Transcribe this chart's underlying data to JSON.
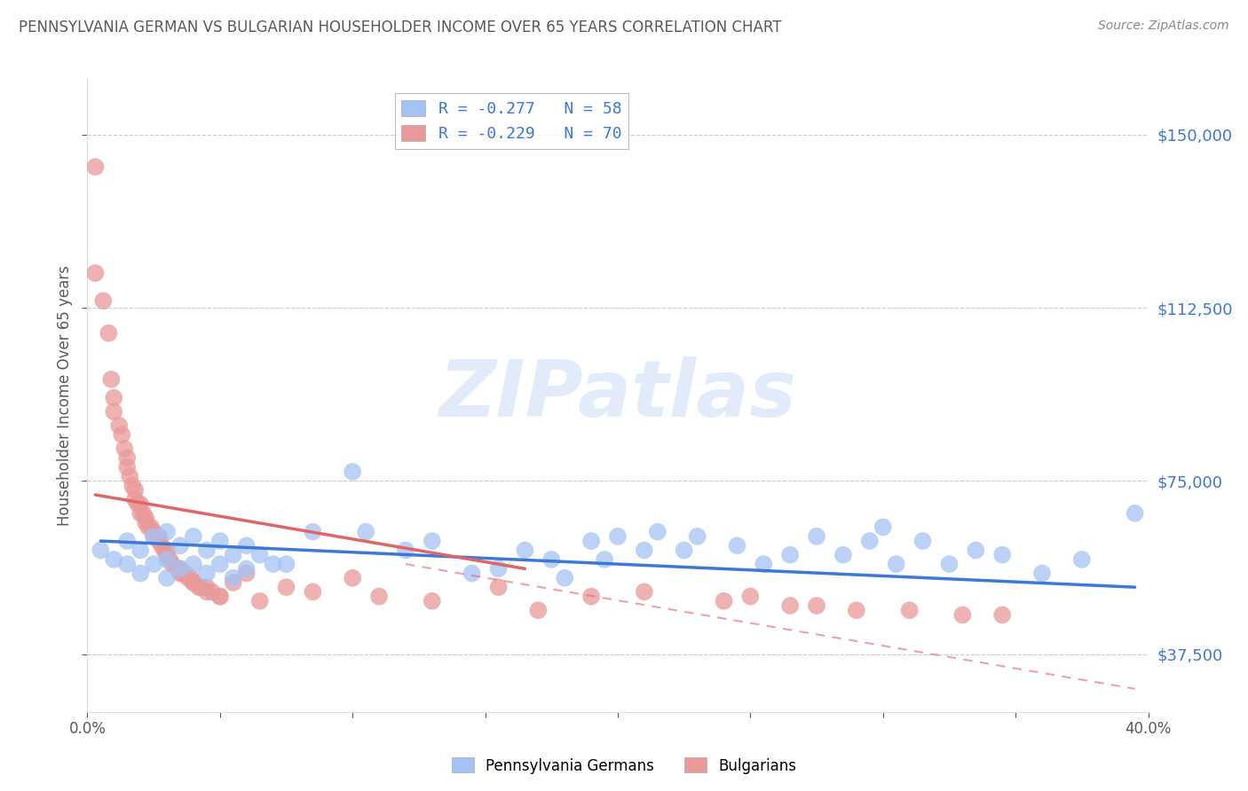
{
  "title": "PENNSYLVANIA GERMAN VS BULGARIAN HOUSEHOLDER INCOME OVER 65 YEARS CORRELATION CHART",
  "source": "Source: ZipAtlas.com",
  "ylabel": "Householder Income Over 65 years",
  "xlim": [
    0.0,
    0.4
  ],
  "ylim": [
    25000,
    162000
  ],
  "yticks": [
    37500,
    75000,
    112500,
    150000
  ],
  "ytick_labels": [
    "$37,500",
    "$75,000",
    "$112,500",
    "$150,000"
  ],
  "xticks": [
    0.0,
    0.05,
    0.1,
    0.15,
    0.2,
    0.25,
    0.3,
    0.35,
    0.4
  ],
  "xtick_labels": [
    "0.0%",
    "",
    "",
    "",
    "",
    "",
    "",
    "",
    "40.0%"
  ],
  "legend_entry1": "R = -0.277   N = 58",
  "legend_entry2": "R = -0.229   N = 70",
  "legend_color1": "#a4c2f4",
  "legend_color2": "#ea9999",
  "watermark": "ZIPatlas",
  "bg_color": "#ffffff",
  "grid_color": "#cccccc",
  "title_color": "#595959",
  "axis_color": "#595959",
  "blue_scatter_color": "#a4c2f4",
  "pink_scatter_color": "#ea9999",
  "blue_line_color": "#3c78d8",
  "pink_line_color": "#e06666",
  "blue_scatter_x": [
    0.005,
    0.01,
    0.015,
    0.015,
    0.02,
    0.02,
    0.025,
    0.025,
    0.03,
    0.03,
    0.03,
    0.035,
    0.035,
    0.04,
    0.04,
    0.045,
    0.045,
    0.05,
    0.05,
    0.055,
    0.055,
    0.06,
    0.06,
    0.065,
    0.07,
    0.075,
    0.085,
    0.1,
    0.105,
    0.12,
    0.13,
    0.145,
    0.155,
    0.165,
    0.175,
    0.18,
    0.19,
    0.195,
    0.2,
    0.21,
    0.215,
    0.225,
    0.23,
    0.245,
    0.255,
    0.265,
    0.275,
    0.285,
    0.295,
    0.3,
    0.305,
    0.315,
    0.325,
    0.335,
    0.345,
    0.36,
    0.375,
    0.395
  ],
  "blue_scatter_y": [
    60000,
    58000,
    62000,
    57000,
    60000,
    55000,
    63000,
    57000,
    64000,
    58000,
    54000,
    61000,
    56000,
    63000,
    57000,
    60000,
    55000,
    62000,
    57000,
    59000,
    54000,
    61000,
    56000,
    59000,
    57000,
    57000,
    64000,
    77000,
    64000,
    60000,
    62000,
    55000,
    56000,
    60000,
    58000,
    54000,
    62000,
    58000,
    63000,
    60000,
    64000,
    60000,
    63000,
    61000,
    57000,
    59000,
    63000,
    59000,
    62000,
    65000,
    57000,
    62000,
    57000,
    60000,
    59000,
    55000,
    58000,
    68000
  ],
  "pink_scatter_x": [
    0.003,
    0.003,
    0.006,
    0.008,
    0.009,
    0.01,
    0.01,
    0.012,
    0.013,
    0.014,
    0.015,
    0.015,
    0.016,
    0.017,
    0.018,
    0.018,
    0.019,
    0.02,
    0.02,
    0.021,
    0.022,
    0.022,
    0.023,
    0.024,
    0.025,
    0.025,
    0.027,
    0.027,
    0.028,
    0.029,
    0.03,
    0.03,
    0.031,
    0.032,
    0.034,
    0.035,
    0.035,
    0.036,
    0.037,
    0.038,
    0.039,
    0.04,
    0.04,
    0.042,
    0.043,
    0.045,
    0.045,
    0.047,
    0.05,
    0.05,
    0.055,
    0.06,
    0.065,
    0.075,
    0.085,
    0.1,
    0.11,
    0.13,
    0.155,
    0.17,
    0.19,
    0.21,
    0.24,
    0.25,
    0.265,
    0.275,
    0.29,
    0.31,
    0.33,
    0.345
  ],
  "pink_scatter_y": [
    143000,
    120000,
    114000,
    107000,
    97000,
    93000,
    90000,
    87000,
    85000,
    82000,
    80000,
    78000,
    76000,
    74000,
    73000,
    71000,
    70000,
    70000,
    68000,
    68000,
    67000,
    66000,
    65000,
    65000,
    64000,
    63000,
    63000,
    62000,
    61000,
    60000,
    60000,
    59000,
    58000,
    57000,
    56000,
    56000,
    55000,
    55000,
    55000,
    54000,
    54000,
    53000,
    53000,
    52000,
    52000,
    52000,
    51000,
    51000,
    50000,
    50000,
    53000,
    55000,
    49000,
    52000,
    51000,
    54000,
    50000,
    49000,
    52000,
    47000,
    50000,
    51000,
    49000,
    50000,
    48000,
    48000,
    47000,
    47000,
    46000,
    46000
  ],
  "blue_line_x": [
    0.005,
    0.395
  ],
  "blue_line_y": [
    62000,
    52000
  ],
  "pink_solid_line_x": [
    0.003,
    0.165
  ],
  "pink_solid_line_y": [
    72000,
    56000
  ],
  "pink_dashed_line_x": [
    0.12,
    0.395
  ],
  "pink_dashed_line_y": [
    57000,
    30000
  ]
}
